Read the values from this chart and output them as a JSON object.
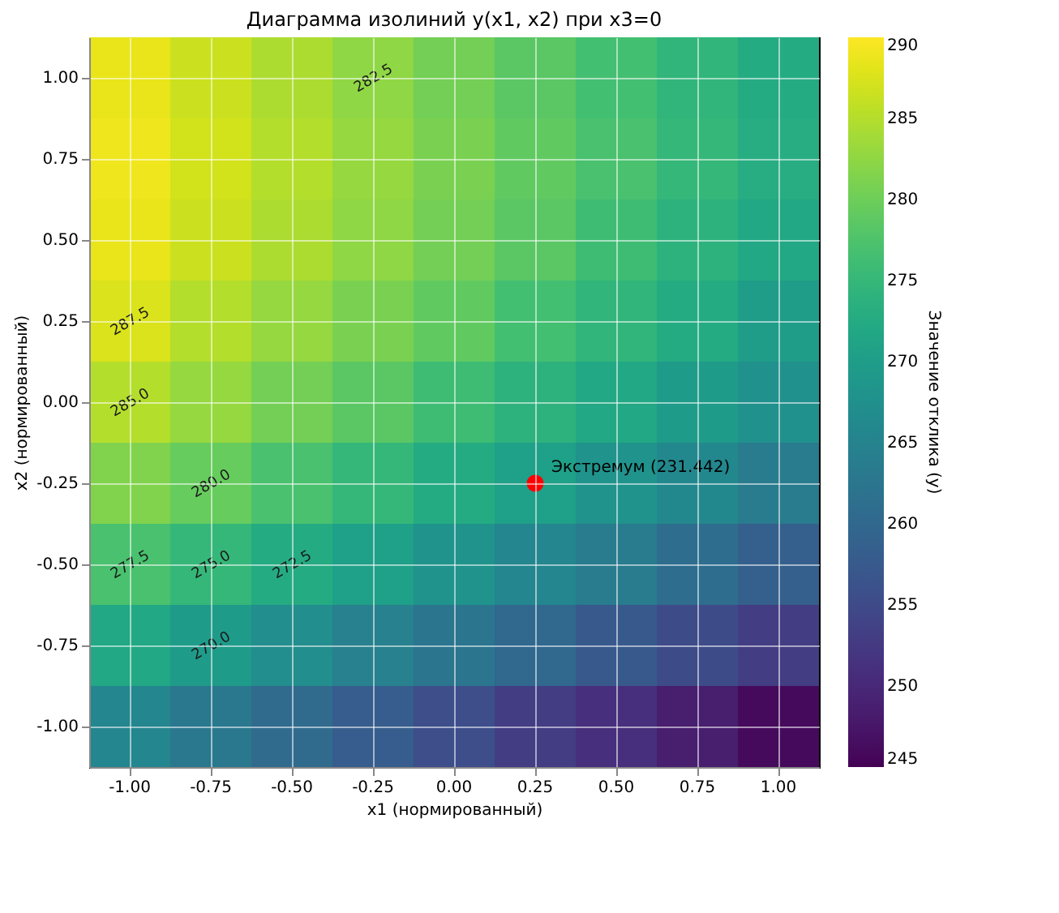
{
  "chart_data": {
    "type": "heatmap",
    "title": "Диаграмма изолиний y(x1, x2) при x3=0",
    "xlabel": "x1 (нормированный)",
    "ylabel": "x2 (нормированный)",
    "clabel": "Значение отклика (y)",
    "categories": [
      "-1.00",
      "-0.75",
      "-0.50",
      "-0.25",
      "0.00",
      "0.25",
      "0.50",
      "0.75",
      "1.00"
    ],
    "y_categories": [
      "1.00",
      "0.75",
      "0.50",
      "0.25",
      "0.00",
      "-0.25",
      "-0.50",
      "-0.75",
      "-1.00"
    ],
    "cells": [
      [
        288.5,
        286.5,
        284.5,
        282.5,
        280.5,
        278.5,
        276.5,
        274.5,
        272.5
      ],
      [
        289,
        287,
        285,
        283,
        281,
        279,
        277,
        275,
        273
      ],
      [
        288.5,
        286.5,
        284.5,
        282.5,
        280.5,
        278.5,
        276,
        274,
        272
      ],
      [
        287.5,
        285,
        283,
        281,
        279,
        276.5,
        274.5,
        272.5,
        270
      ],
      [
        285,
        283,
        280.5,
        278.5,
        276,
        274,
        272,
        269.5,
        267.5
      ],
      [
        281.5,
        279.5,
        277,
        275,
        272.5,
        270.5,
        268,
        266,
        263.5
      ],
      [
        277,
        275,
        272.5,
        270.5,
        268,
        265.5,
        263.5,
        261,
        258.5
      ],
      [
        272,
        269.5,
        267,
        264.5,
        262.5,
        260,
        257.5,
        255,
        253
      ],
      [
        265.5,
        263,
        260.5,
        258,
        255.5,
        253,
        251,
        248.5,
        246
      ]
    ],
    "clim": [
      245,
      290
    ],
    "cticks": [
      245,
      250,
      255,
      260,
      265,
      270,
      275,
      280,
      285,
      290
    ],
    "annotations": [
      "287.5",
      "285.0",
      "282.5",
      "280.0",
      "277.5",
      "275.0",
      "272.5",
      "270.0",
      {
        "text": "Экстремум (231.442)",
        "x": "0.25",
        "y": "-0.25"
      }
    ],
    "grid": true
  }
}
